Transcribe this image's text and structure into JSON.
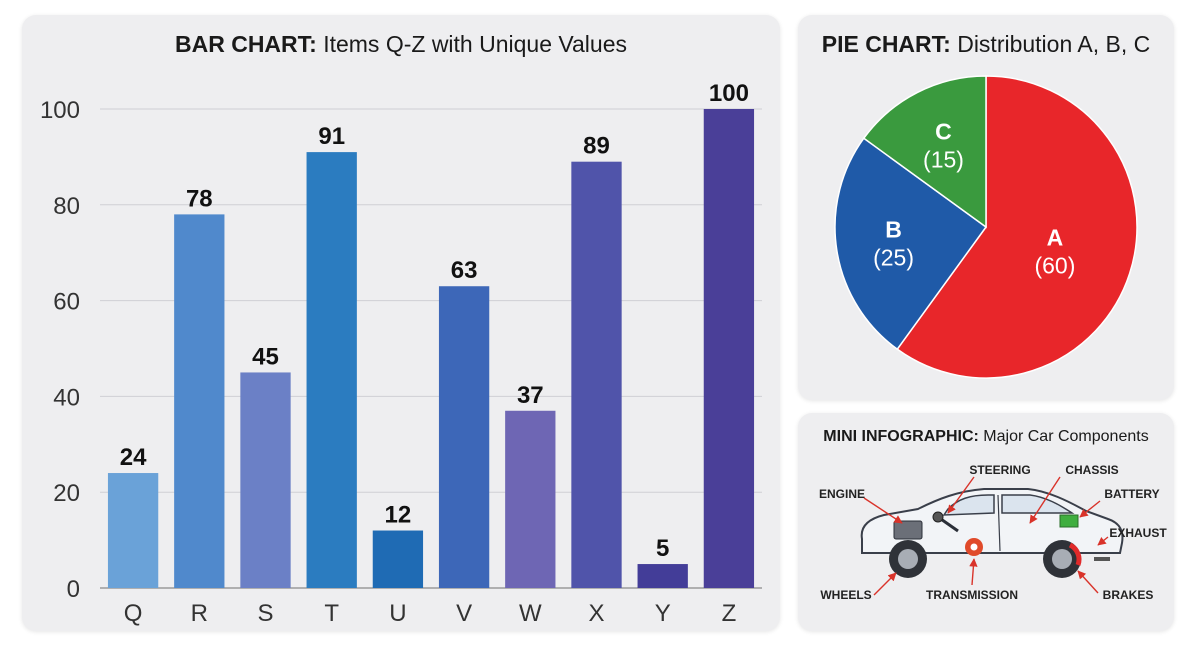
{
  "bar_panel": {
    "title_bold": "BAR CHART:",
    "title_rest": " Items Q-Z with Unique Values"
  },
  "pie_panel": {
    "title_bold": "PIE CHART:",
    "title_rest": " Distribution A, B, C"
  },
  "info_panel": {
    "title_bold": "MINI INFOGRAPHIC:",
    "title_rest": " Major Car Components",
    "callouts": [
      "ENGINE",
      "STEERING",
      "CHASSIS",
      "BATTERY",
      "EXHAUST",
      "WHEELS",
      "TRANSMISSION",
      "BRAKES"
    ]
  },
  "chart_data": [
    {
      "type": "bar",
      "title": "BAR CHART: Items Q-Z with Unique Values",
      "categories": [
        "Q",
        "R",
        "S",
        "T",
        "U",
        "V",
        "W",
        "X",
        "Y",
        "Z"
      ],
      "values": [
        24,
        78,
        45,
        91,
        12,
        63,
        37,
        89,
        5,
        100
      ],
      "colors": [
        "#6aa2d8",
        "#5089cc",
        "#6b80c6",
        "#2b7cc0",
        "#1f6bb4",
        "#3d67b8",
        "#6e66b4",
        "#5054aa",
        "#433d98",
        "#4a3f98"
      ],
      "ylim": [
        0,
        100
      ],
      "yticks": [
        0,
        20,
        40,
        60,
        80,
        100
      ],
      "grid": true,
      "xlabel": "",
      "ylabel": ""
    },
    {
      "type": "pie",
      "title": "PIE CHART: Distribution A, B, C",
      "labels": [
        "A",
        "B",
        "C"
      ],
      "values": [
        60,
        25,
        15
      ],
      "display": [
        "(60)",
        "(25)",
        "(15)"
      ],
      "colors": [
        "#e8262a",
        "#1f5aa8",
        "#3a9a3e"
      ]
    }
  ]
}
